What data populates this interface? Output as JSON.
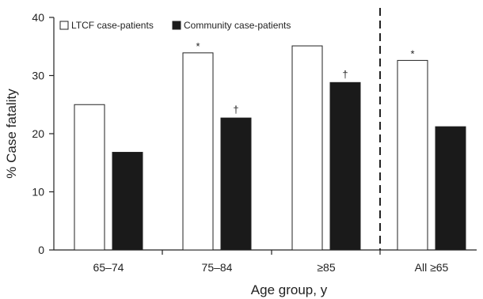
{
  "chart_data": {
    "type": "bar",
    "categories": [
      "65–74",
      "75–84",
      "≥85",
      "All ≥65"
    ],
    "series": [
      {
        "name": "LTCF case-patients",
        "values": [
          25.0,
          33.9,
          35.1,
          32.6
        ],
        "color": "#ffffff",
        "annotations": [
          "",
          "*",
          "",
          "*"
        ]
      },
      {
        "name": "Community case-patients",
        "values": [
          16.8,
          22.7,
          28.8,
          21.2
        ],
        "color": "#1a1a1a",
        "annotations": [
          "",
          "†",
          "†",
          ""
        ]
      }
    ],
    "xlabel": "Age group, y",
    "ylabel": "% Case fatality",
    "ylim": [
      0,
      40
    ],
    "yticks": [
      "0",
      "10",
      "20",
      "30",
      "40"
    ],
    "grid": false,
    "legend": "top-left",
    "divider": "dashed vertical line before last category"
  }
}
